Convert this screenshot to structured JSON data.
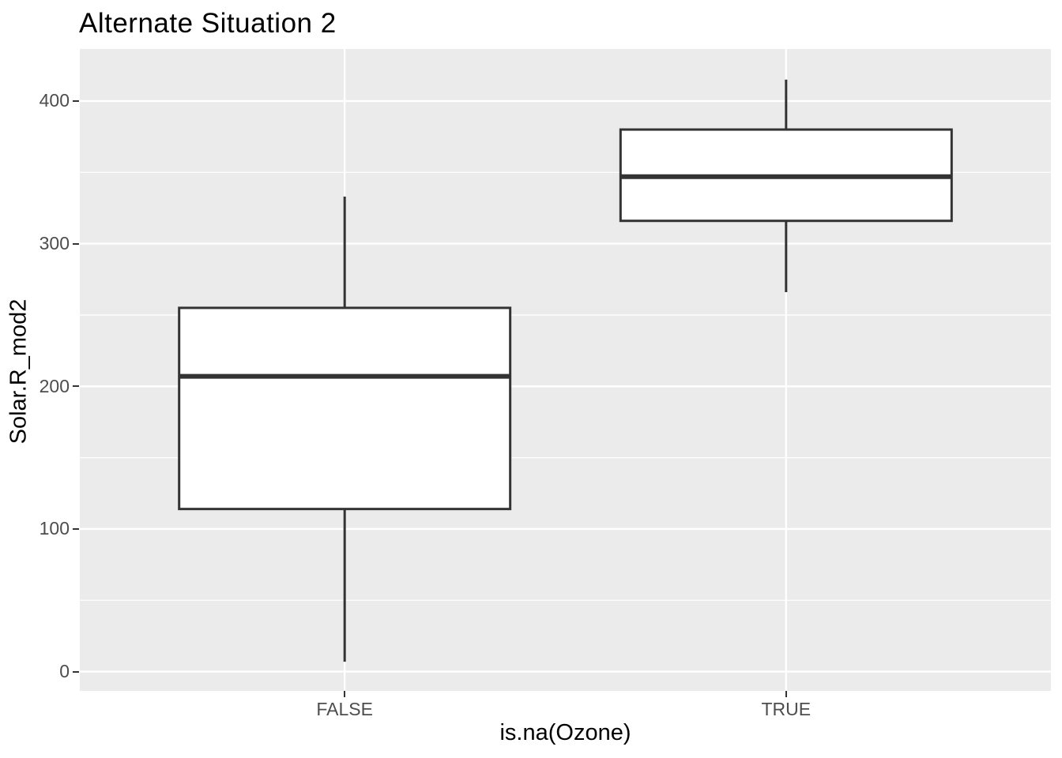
{
  "chart_data": {
    "type": "boxplot",
    "title": "Alternate Situation 2",
    "xlabel": "is.na(Ozone)",
    "ylabel": "Solar.R_mod2",
    "categories": [
      "FALSE",
      "TRUE"
    ],
    "series": [
      {
        "name": "FALSE",
        "min": 7,
        "q1": 114,
        "median": 207,
        "q3": 255,
        "max": 333
      },
      {
        "name": "TRUE",
        "min": 266,
        "q1": 316,
        "median": 347,
        "q3": 380,
        "max": 415
      }
    ],
    "y_major_ticks": [
      0,
      100,
      200,
      300,
      400
    ],
    "y_minor_ticks": [
      50,
      150,
      250,
      350
    ],
    "ylim": [
      -13.5,
      436.5
    ],
    "grid": "on",
    "legend": "none",
    "colors": {
      "panel_background": "#EBEBEB",
      "gridline": "#FFFFFF",
      "box_stroke": "#333333",
      "box_fill": "#FFFFFF",
      "tick_mark": "#333333",
      "tick_label": "#4D4D4D",
      "title_text": "#000000"
    }
  }
}
